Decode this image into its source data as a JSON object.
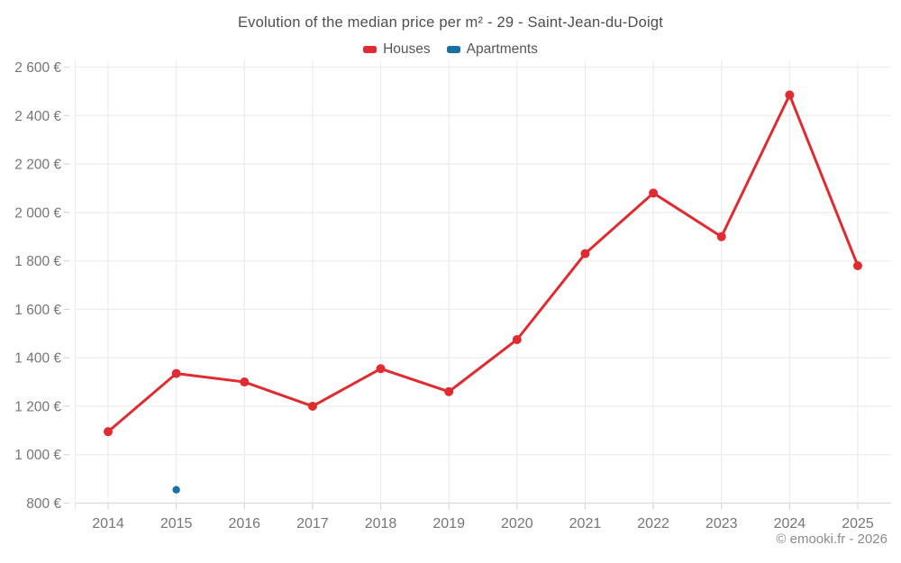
{
  "chart_data": {
    "type": "line",
    "title": "Evolution of the median price per m² - 29 - Saint-Jean-du-Doigt",
    "x": [
      2014,
      2015,
      2016,
      2017,
      2018,
      2019,
      2020,
      2021,
      2022,
      2023,
      2024,
      2025
    ],
    "series": [
      {
        "name": "Houses",
        "color": "#e02b30",
        "values": [
          1095,
          1335,
          1300,
          1200,
          1355,
          1260,
          1475,
          1830,
          2080,
          1900,
          2485,
          1780
        ]
      },
      {
        "name": "Apartments",
        "color": "#1a6fa5",
        "values": [
          null,
          855,
          null,
          null,
          null,
          null,
          null,
          null,
          null,
          null,
          null,
          null
        ]
      }
    ],
    "ylim": [
      800,
      2600
    ],
    "ytick_step": 200,
    "ylabel_suffix": " €",
    "grid": true,
    "legend_position": "top",
    "colors": {
      "gridline": "#ededed",
      "axis_line": "#d9d9d9",
      "tick_label": "#757575",
      "title_text": "#4e4e4e",
      "legend_text": "#555555",
      "attribution_text": "#8b8b8b"
    },
    "attribution": "© emooki.fr - 2026"
  }
}
